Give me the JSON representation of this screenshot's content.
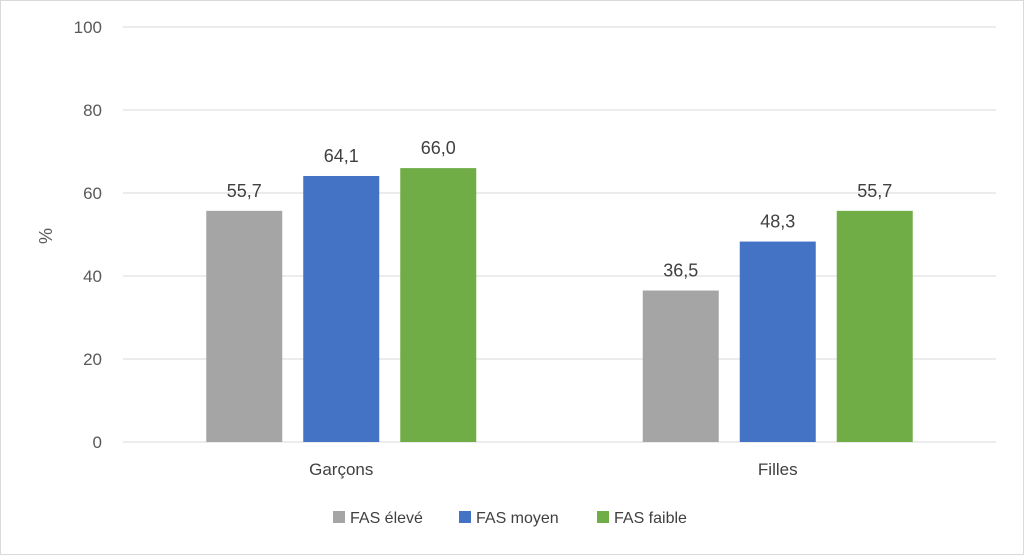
{
  "chart_data": {
    "type": "bar",
    "title": "",
    "xlabel": "",
    "ylabel": "%",
    "ylim": [
      0,
      100
    ],
    "yticks": [
      "0",
      "20",
      "40",
      "60",
      "80",
      "100"
    ],
    "grid": true,
    "legend_position": "bottom",
    "categories": [
      "Garçons",
      "Filles"
    ],
    "series": [
      {
        "name": "FAS élevé",
        "color": "#a5a5a5",
        "values": [
          55.7,
          36.5
        ],
        "labels": [
          "55,7",
          "36,5"
        ]
      },
      {
        "name": "FAS moyen",
        "color": "#4472c4",
        "values": [
          64.1,
          48.3
        ],
        "labels": [
          "64,1",
          "48,3"
        ]
      },
      {
        "name": "FAS faible",
        "color": "#70ad47",
        "values": [
          66.0,
          55.7
        ],
        "labels": [
          "66,0",
          "55,7"
        ]
      }
    ]
  }
}
